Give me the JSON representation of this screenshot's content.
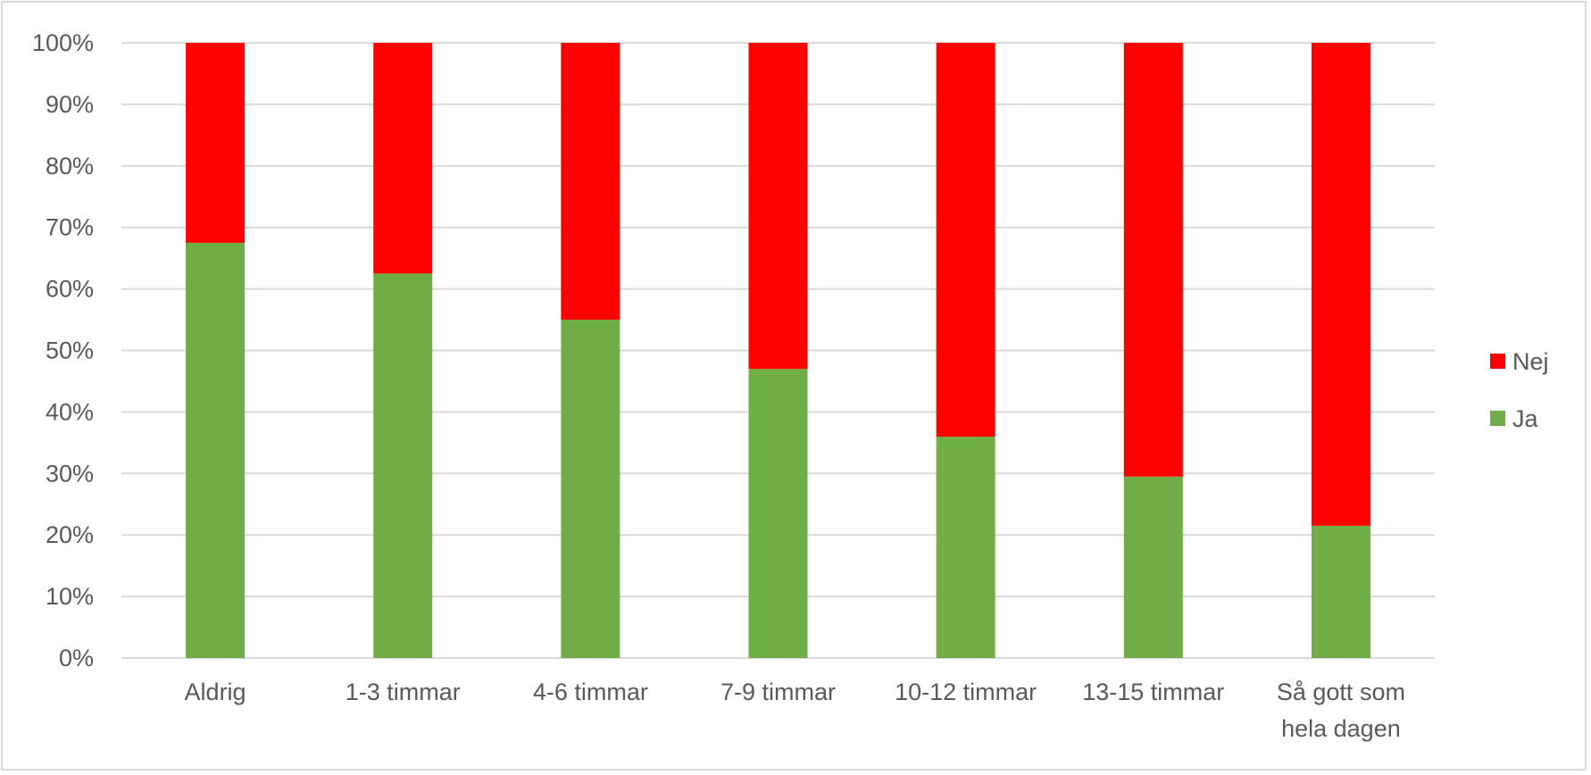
{
  "chart_data": {
    "type": "bar",
    "stacked": true,
    "categories": [
      "Aldrig",
      "1-3 timmar",
      "4-6 timmar",
      "7-9 timmar",
      "10-12 timmar",
      "13-15 timmar",
      "Så gott som hela dagen"
    ],
    "category_label_lines": [
      [
        "Aldrig"
      ],
      [
        "1-3 timmar"
      ],
      [
        "4-6 timmar"
      ],
      [
        "7-9 timmar"
      ],
      [
        "10-12 timmar"
      ],
      [
        "13-15 timmar"
      ],
      [
        "Så gott som",
        "hela dagen"
      ]
    ],
    "series": [
      {
        "name": "Ja",
        "color": "#70ad47",
        "values": [
          67.5,
          62.5,
          55,
          47,
          36,
          29.5,
          21.5
        ]
      },
      {
        "name": "Nej",
        "color": "#ff0000",
        "values": [
          32.5,
          37.5,
          45,
          53,
          64,
          70.5,
          78.5
        ]
      }
    ],
    "y_ticks": [
      "0%",
      "10%",
      "20%",
      "30%",
      "40%",
      "50%",
      "60%",
      "70%",
      "80%",
      "90%",
      "100%"
    ],
    "ylim": [
      0,
      100
    ],
    "grid": true,
    "legend_position": "right",
    "legend_order": [
      "Nej",
      "Ja"
    ],
    "title": "",
    "xlabel": "",
    "ylabel": ""
  }
}
